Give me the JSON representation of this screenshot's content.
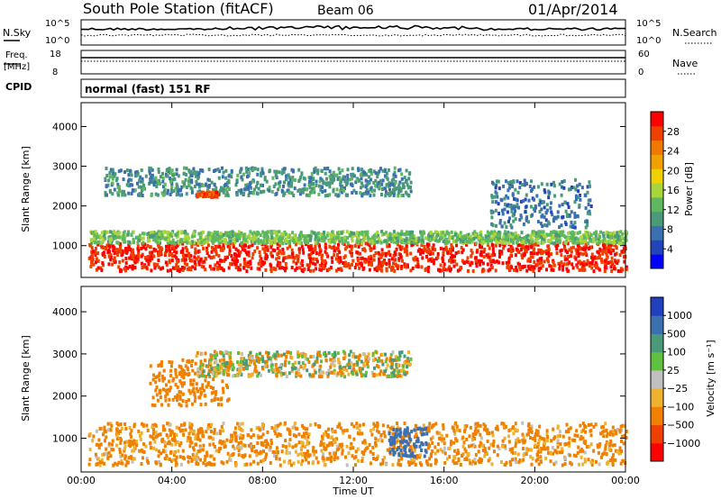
{
  "header": {
    "station": "South Pole Station (fitACF)",
    "beam": "Beam 06",
    "date": "01/Apr/2014"
  },
  "noise_panel": {
    "left_label": "N.Sky",
    "right_label": "N.Search",
    "left_ticks": [
      "10^5",
      "10^0"
    ],
    "right_ticks": [
      "10^5",
      "10^0"
    ]
  },
  "freq_panel": {
    "left_label_1": "Freq.",
    "left_label_2": "[MHz]",
    "right_label": "Nave",
    "left_ticks": [
      "18",
      "8"
    ],
    "right_ticks": [
      "60",
      "0"
    ]
  },
  "cpid": {
    "label": "CPID",
    "mode": "normal (fast) 151 RF"
  },
  "colors": {
    "power_scale": [
      "#0000ff",
      "#2244bb",
      "#3a6fb0",
      "#4a9a7a",
      "#5fb85f",
      "#a8d43c",
      "#f0d000",
      "#f0a000",
      "#f07800",
      "#f04000",
      "#ff0000"
    ],
    "velocity_scale": [
      "#ff0000",
      "#f04000",
      "#f08000",
      "#f0b030",
      "#c0c0c0",
      "#60c040",
      "#4a9a7a",
      "#3a6fb0",
      "#2040c0"
    ]
  },
  "chart_data": [
    {
      "type": "heatmap",
      "name": "power",
      "ylabel": "Slant Range [km]",
      "xlabel": "",
      "yticks": [
        "1000",
        "2000",
        "3000",
        "4000"
      ],
      "xlim": [
        0,
        24
      ],
      "ylim": [
        200,
        4600
      ],
      "colorbar_label": "Power [dB]",
      "colorbar_ticks": [
        "4",
        "8",
        "12",
        "16",
        "20",
        "24",
        "28"
      ],
      "colorbar_range": [
        0,
        32
      ],
      "scatter_bands": [
        {
          "t0": 0.3,
          "t1": 24,
          "r0": 400,
          "r1": 1100,
          "level": 30
        },
        {
          "t0": 0.3,
          "t1": 24,
          "r0": 1100,
          "r1": 1400,
          "level": 14
        },
        {
          "t0": 1.0,
          "t1": 14.5,
          "r0": 2300,
          "r1": 3000,
          "level": 10
        },
        {
          "t0": 5.0,
          "t1": 6.0,
          "r0": 2250,
          "r1": 2400,
          "level": 28
        },
        {
          "t0": 18.0,
          "t1": 22.5,
          "r0": 1500,
          "r1": 2700,
          "level": 8
        }
      ]
    },
    {
      "type": "heatmap",
      "name": "velocity",
      "ylabel": "Slant Range [km]",
      "xlabel": "Time UT",
      "yticks": [
        "1000",
        "2000",
        "3000",
        "4000"
      ],
      "xticks": [
        "00:00",
        "04:00",
        "08:00",
        "12:00",
        "16:00",
        "20:00",
        "00:00"
      ],
      "xlim": [
        0,
        24
      ],
      "ylim": [
        200,
        4600
      ],
      "colorbar_label": "Velocity [m s⁻¹]",
      "colorbar_ticks": [
        "1000",
        "500",
        "100",
        "25",
        "−25",
        "−100",
        "−500",
        "−1000"
      ],
      "scatter_bands": [
        {
          "t0": 0.3,
          "t1": 24,
          "r0": 400,
          "r1": 1400,
          "level": -200
        },
        {
          "t0": 3.0,
          "t1": 6.5,
          "r0": 1800,
          "r1": 2900,
          "level": -300
        },
        {
          "t0": 5.0,
          "t1": 14.5,
          "r0": 2500,
          "r1": 3100,
          "level": 0
        },
        {
          "t0": 13.5,
          "t1": 15.2,
          "r0": 600,
          "r1": 1300,
          "level": 800
        }
      ]
    }
  ]
}
